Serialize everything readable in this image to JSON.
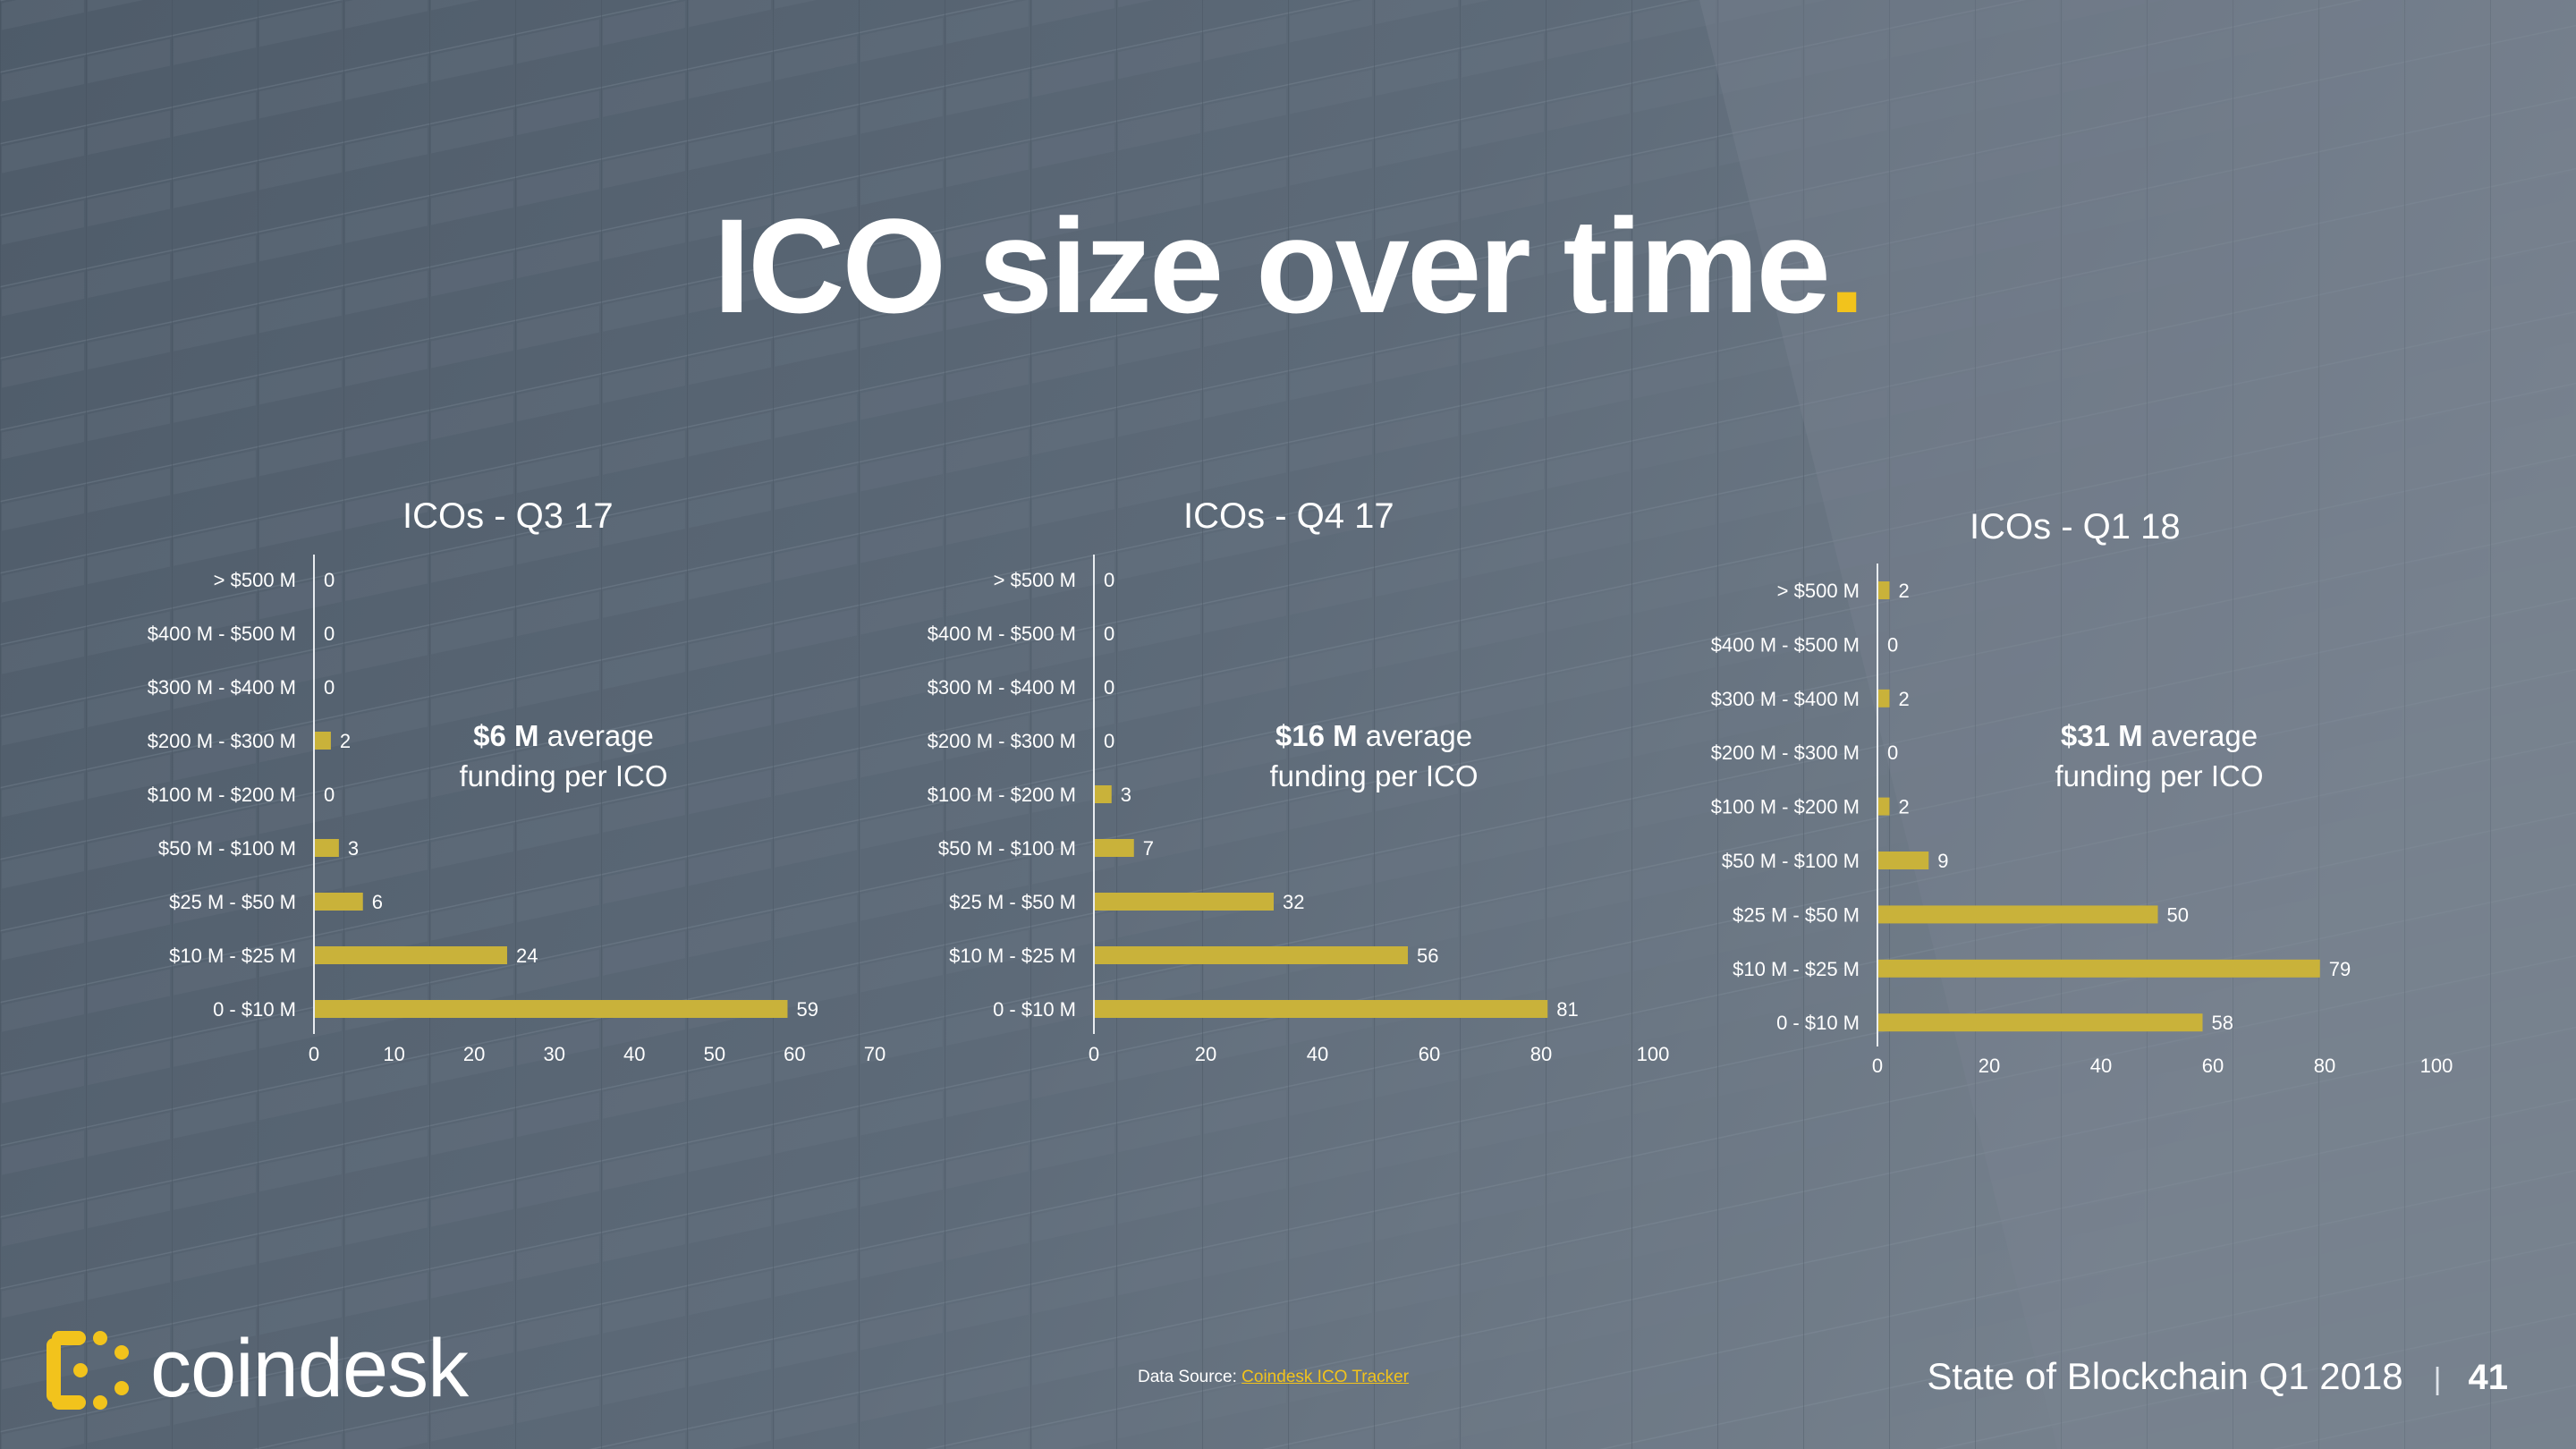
{
  "title": {
    "text": "ICO size over time",
    "dot": "."
  },
  "colors": {
    "bar": "#c9b23a",
    "accent": "#f2c31c",
    "axis": "#e8ecf0"
  },
  "charts": [
    {
      "chart_title": "ICOs - Q3 17",
      "avg_value": "$6 M",
      "avg_line1_rest": " average",
      "avg_line2": "funding per ICO"
    },
    {
      "chart_title": "ICOs - Q4 17",
      "avg_value": "$16 M",
      "avg_line1_rest": " average",
      "avg_line2": "funding per ICO"
    },
    {
      "chart_title": "ICOs - Q1 18",
      "avg_value": "$31 M",
      "avg_line1_rest": " average",
      "avg_line2": "funding per ICO"
    }
  ],
  "chart_data": [
    {
      "type": "bar",
      "orientation": "horizontal",
      "title": "ICOs - Q3 17",
      "categories": [
        "> $500 M",
        "$400 M - $500 M",
        "$300 M - $400 M",
        "$200 M - $300 M",
        "$100 M - $200 M",
        "$50 M - $100 M",
        "$25 M - $50 M",
        "$10 M - $25 M",
        "0 - $10 M"
      ],
      "values": [
        0,
        0,
        0,
        2,
        0,
        3,
        6,
        24,
        59
      ],
      "xlim": [
        0,
        70
      ],
      "xticks": [
        0,
        10,
        20,
        30,
        40,
        50,
        60,
        70
      ],
      "grid": false,
      "annotation": "$6 M average funding per ICO"
    },
    {
      "type": "bar",
      "orientation": "horizontal",
      "title": "ICOs - Q4 17",
      "categories": [
        "> $500 M",
        "$400 M - $500 M",
        "$300 M - $400 M",
        "$200 M - $300 M",
        "$100 M - $200 M",
        "$50 M - $100 M",
        "$25 M - $50 M",
        "$10 M - $25 M",
        "0 - $10 M"
      ],
      "values": [
        0,
        0,
        0,
        0,
        3,
        7,
        32,
        56,
        81
      ],
      "xlim": [
        0,
        100
      ],
      "xticks": [
        0,
        20,
        40,
        60,
        80,
        100
      ],
      "grid": false,
      "annotation": "$16 M average funding per ICO"
    },
    {
      "type": "bar",
      "orientation": "horizontal",
      "title": "ICOs - Q1 18",
      "categories": [
        "> $500 M",
        "$400 M - $500 M",
        "$300 M - $400 M",
        "$200 M - $300 M",
        "$100 M - $200 M",
        "$50 M - $100 M",
        "$25 M - $50 M",
        "$10 M - $25 M",
        "0 - $10 M"
      ],
      "values": [
        2,
        0,
        2,
        0,
        2,
        9,
        50,
        79,
        58
      ],
      "xlim": [
        0,
        100
      ],
      "xticks": [
        0,
        20,
        40,
        60,
        80,
        100
      ],
      "grid": false,
      "annotation": "$31 M average funding per ICO"
    }
  ],
  "logo": {
    "text": "coindesk",
    "icon": "coindesk-logo-icon"
  },
  "source": {
    "prefix": "Data Source: ",
    "link": "Coindesk ICO Tracker"
  },
  "footer": {
    "report": "State of Blockchain Q1 2018",
    "separator": "|",
    "page": "41"
  }
}
